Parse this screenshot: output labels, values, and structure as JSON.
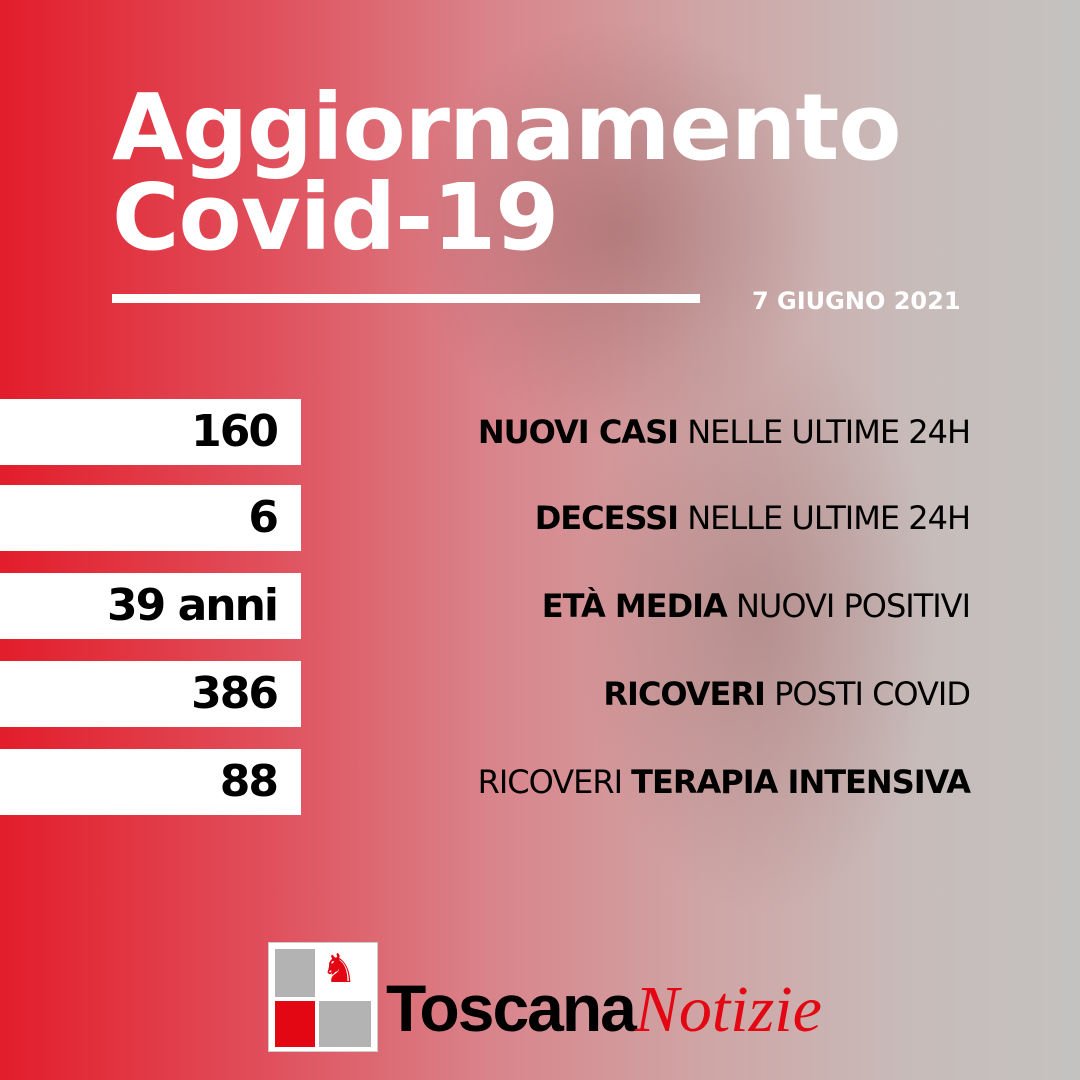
{
  "title": {
    "line1": "Aggiornamento",
    "line2": "Covid-19"
  },
  "date": "7 GIUGNO 2021",
  "stats": [
    {
      "value": "160",
      "bold": "NUOVI CASI",
      "rest": " NELLE ULTIME 24H"
    },
    {
      "value": "6",
      "bold": "DECESSI",
      "rest": " NELLE ULTIME 24H"
    },
    {
      "value": "39 anni",
      "bold": "ETÀ MEDIA",
      "rest": " NUOVI POSITIVI"
    },
    {
      "value": "386",
      "bold": "RICOVERI",
      "rest": " POSTI COVID"
    },
    {
      "value": "88",
      "pre": "RICOVERI ",
      "bold": "TERAPIA INTENSIVA"
    }
  ],
  "brand": {
    "part1": "Toscana",
    "part2": "Notizie"
  },
  "colors": {
    "accent": "#e31d2b",
    "logo_red": "#e30613"
  }
}
